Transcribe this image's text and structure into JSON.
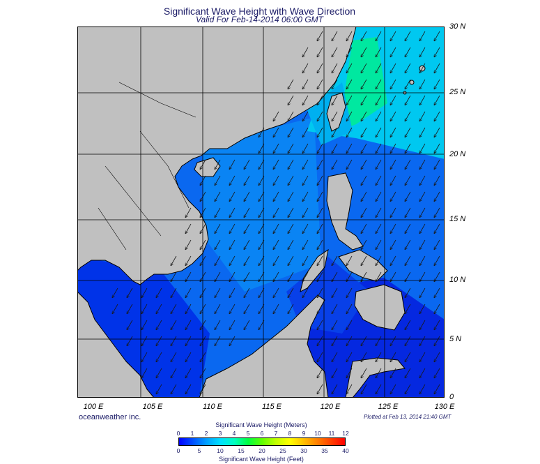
{
  "header": {
    "title": "Significant Wave Height with Wave Direction",
    "subtitle": "Valid For Feb-14-2014 06:00 GMT"
  },
  "axes": {
    "lat_labels": [
      "30 N",
      "25 N",
      "20 N",
      "15 N",
      "10 N",
      "5 N",
      "0"
    ],
    "lon_labels": [
      "100 E",
      "105 E",
      "110 E",
      "115 E",
      "120 E",
      "125 E",
      "130 E"
    ]
  },
  "footer": {
    "credit": "oceanweather inc.",
    "plotted": "Plotted at Feb 13, 2014 21:40 GMT"
  },
  "legend": {
    "meters_title": "Significant Wave Height (Meters)",
    "feet_title": "Significant Wave Height (Feet)",
    "meters_ticks": [
      "0",
      "1",
      "2",
      "3",
      "4",
      "5",
      "6",
      "7",
      "8",
      "9",
      "10",
      "11",
      "12"
    ],
    "feet_ticks": [
      "0",
      "5",
      "10",
      "15",
      "20",
      "25",
      "30",
      "35",
      "40"
    ]
  },
  "colors": {
    "land": "#c0c0c0",
    "coast": "#000000",
    "grid": "#000000",
    "arrow": "#1a1a1a",
    "title": "#1a1a66",
    "scale": [
      "#0000ff",
      "#0050ff",
      "#00a0ff",
      "#00e0ff",
      "#00ffc0",
      "#00ff40",
      "#60ff00",
      "#c0ff00",
      "#ffff00",
      "#ffc000",
      "#ff8000",
      "#ff4000",
      "#ff0000"
    ]
  },
  "wave_direction": "southwest-bound"
}
